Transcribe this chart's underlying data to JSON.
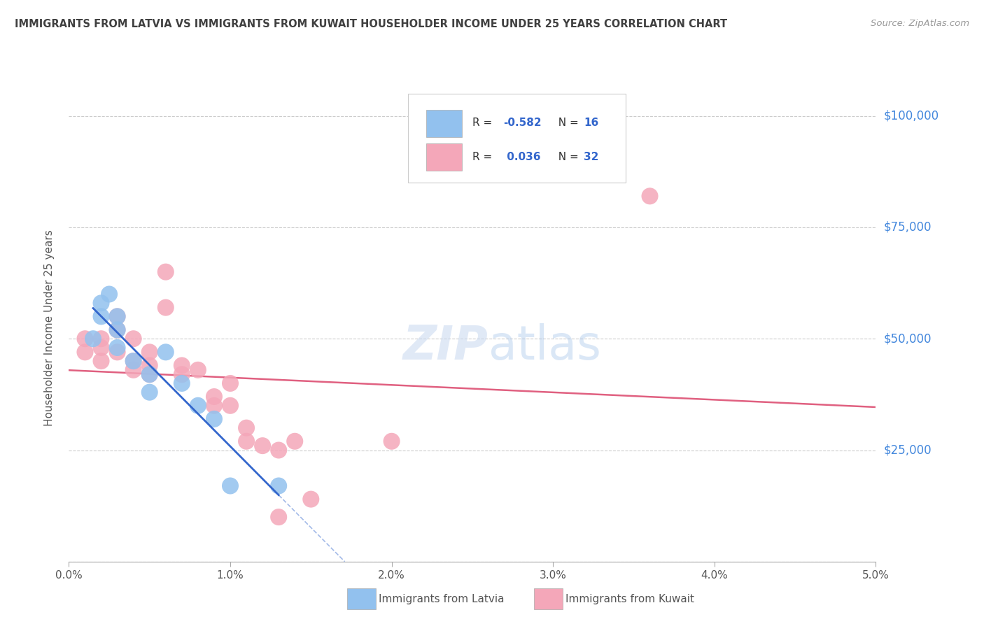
{
  "title": "IMMIGRANTS FROM LATVIA VS IMMIGRANTS FROM KUWAIT HOUSEHOLDER INCOME UNDER 25 YEARS CORRELATION CHART",
  "source": "Source: ZipAtlas.com",
  "ylabel": "Householder Income Under 25 years",
  "yticks": [
    0,
    25000,
    50000,
    75000,
    100000
  ],
  "ytick_labels": [
    "",
    "$25,000",
    "$50,000",
    "$75,000",
    "$100,000"
  ],
  "xlim": [
    0.0,
    0.05
  ],
  "ylim": [
    0,
    105000
  ],
  "legend_r1": "-0.582",
  "legend_n1": "16",
  "legend_r2": "0.036",
  "legend_n2": "32",
  "color_latvia": "#92C1EE",
  "color_kuwait": "#F4A7B9",
  "color_trendline_latvia": "#3366CC",
  "color_trendline_kuwait": "#E06080",
  "color_grid": "#CCCCCC",
  "color_title": "#404040",
  "color_source": "#999999",
  "color_ytick": "#4488DD",
  "watermark_zip": "ZIP",
  "watermark_atlas": "atlas",
  "latvia_x": [
    0.0015,
    0.002,
    0.002,
    0.0025,
    0.003,
    0.003,
    0.003,
    0.004,
    0.005,
    0.005,
    0.006,
    0.007,
    0.008,
    0.009,
    0.01,
    0.013
  ],
  "latvia_y": [
    50000,
    58000,
    55000,
    60000,
    55000,
    52000,
    48000,
    45000,
    42000,
    38000,
    47000,
    40000,
    35000,
    32000,
    17000,
    17000
  ],
  "kuwait_x": [
    0.001,
    0.001,
    0.002,
    0.002,
    0.002,
    0.003,
    0.003,
    0.003,
    0.004,
    0.004,
    0.004,
    0.005,
    0.005,
    0.005,
    0.006,
    0.006,
    0.007,
    0.007,
    0.008,
    0.009,
    0.009,
    0.01,
    0.01,
    0.011,
    0.011,
    0.012,
    0.013,
    0.013,
    0.014,
    0.015,
    0.02,
    0.036
  ],
  "kuwait_y": [
    50000,
    47000,
    50000,
    48000,
    45000,
    55000,
    52000,
    47000,
    50000,
    45000,
    43000,
    47000,
    44000,
    42000,
    65000,
    57000,
    44000,
    42000,
    43000,
    37000,
    35000,
    40000,
    35000,
    30000,
    27000,
    26000,
    25000,
    10000,
    27000,
    14000,
    27000,
    82000
  ]
}
